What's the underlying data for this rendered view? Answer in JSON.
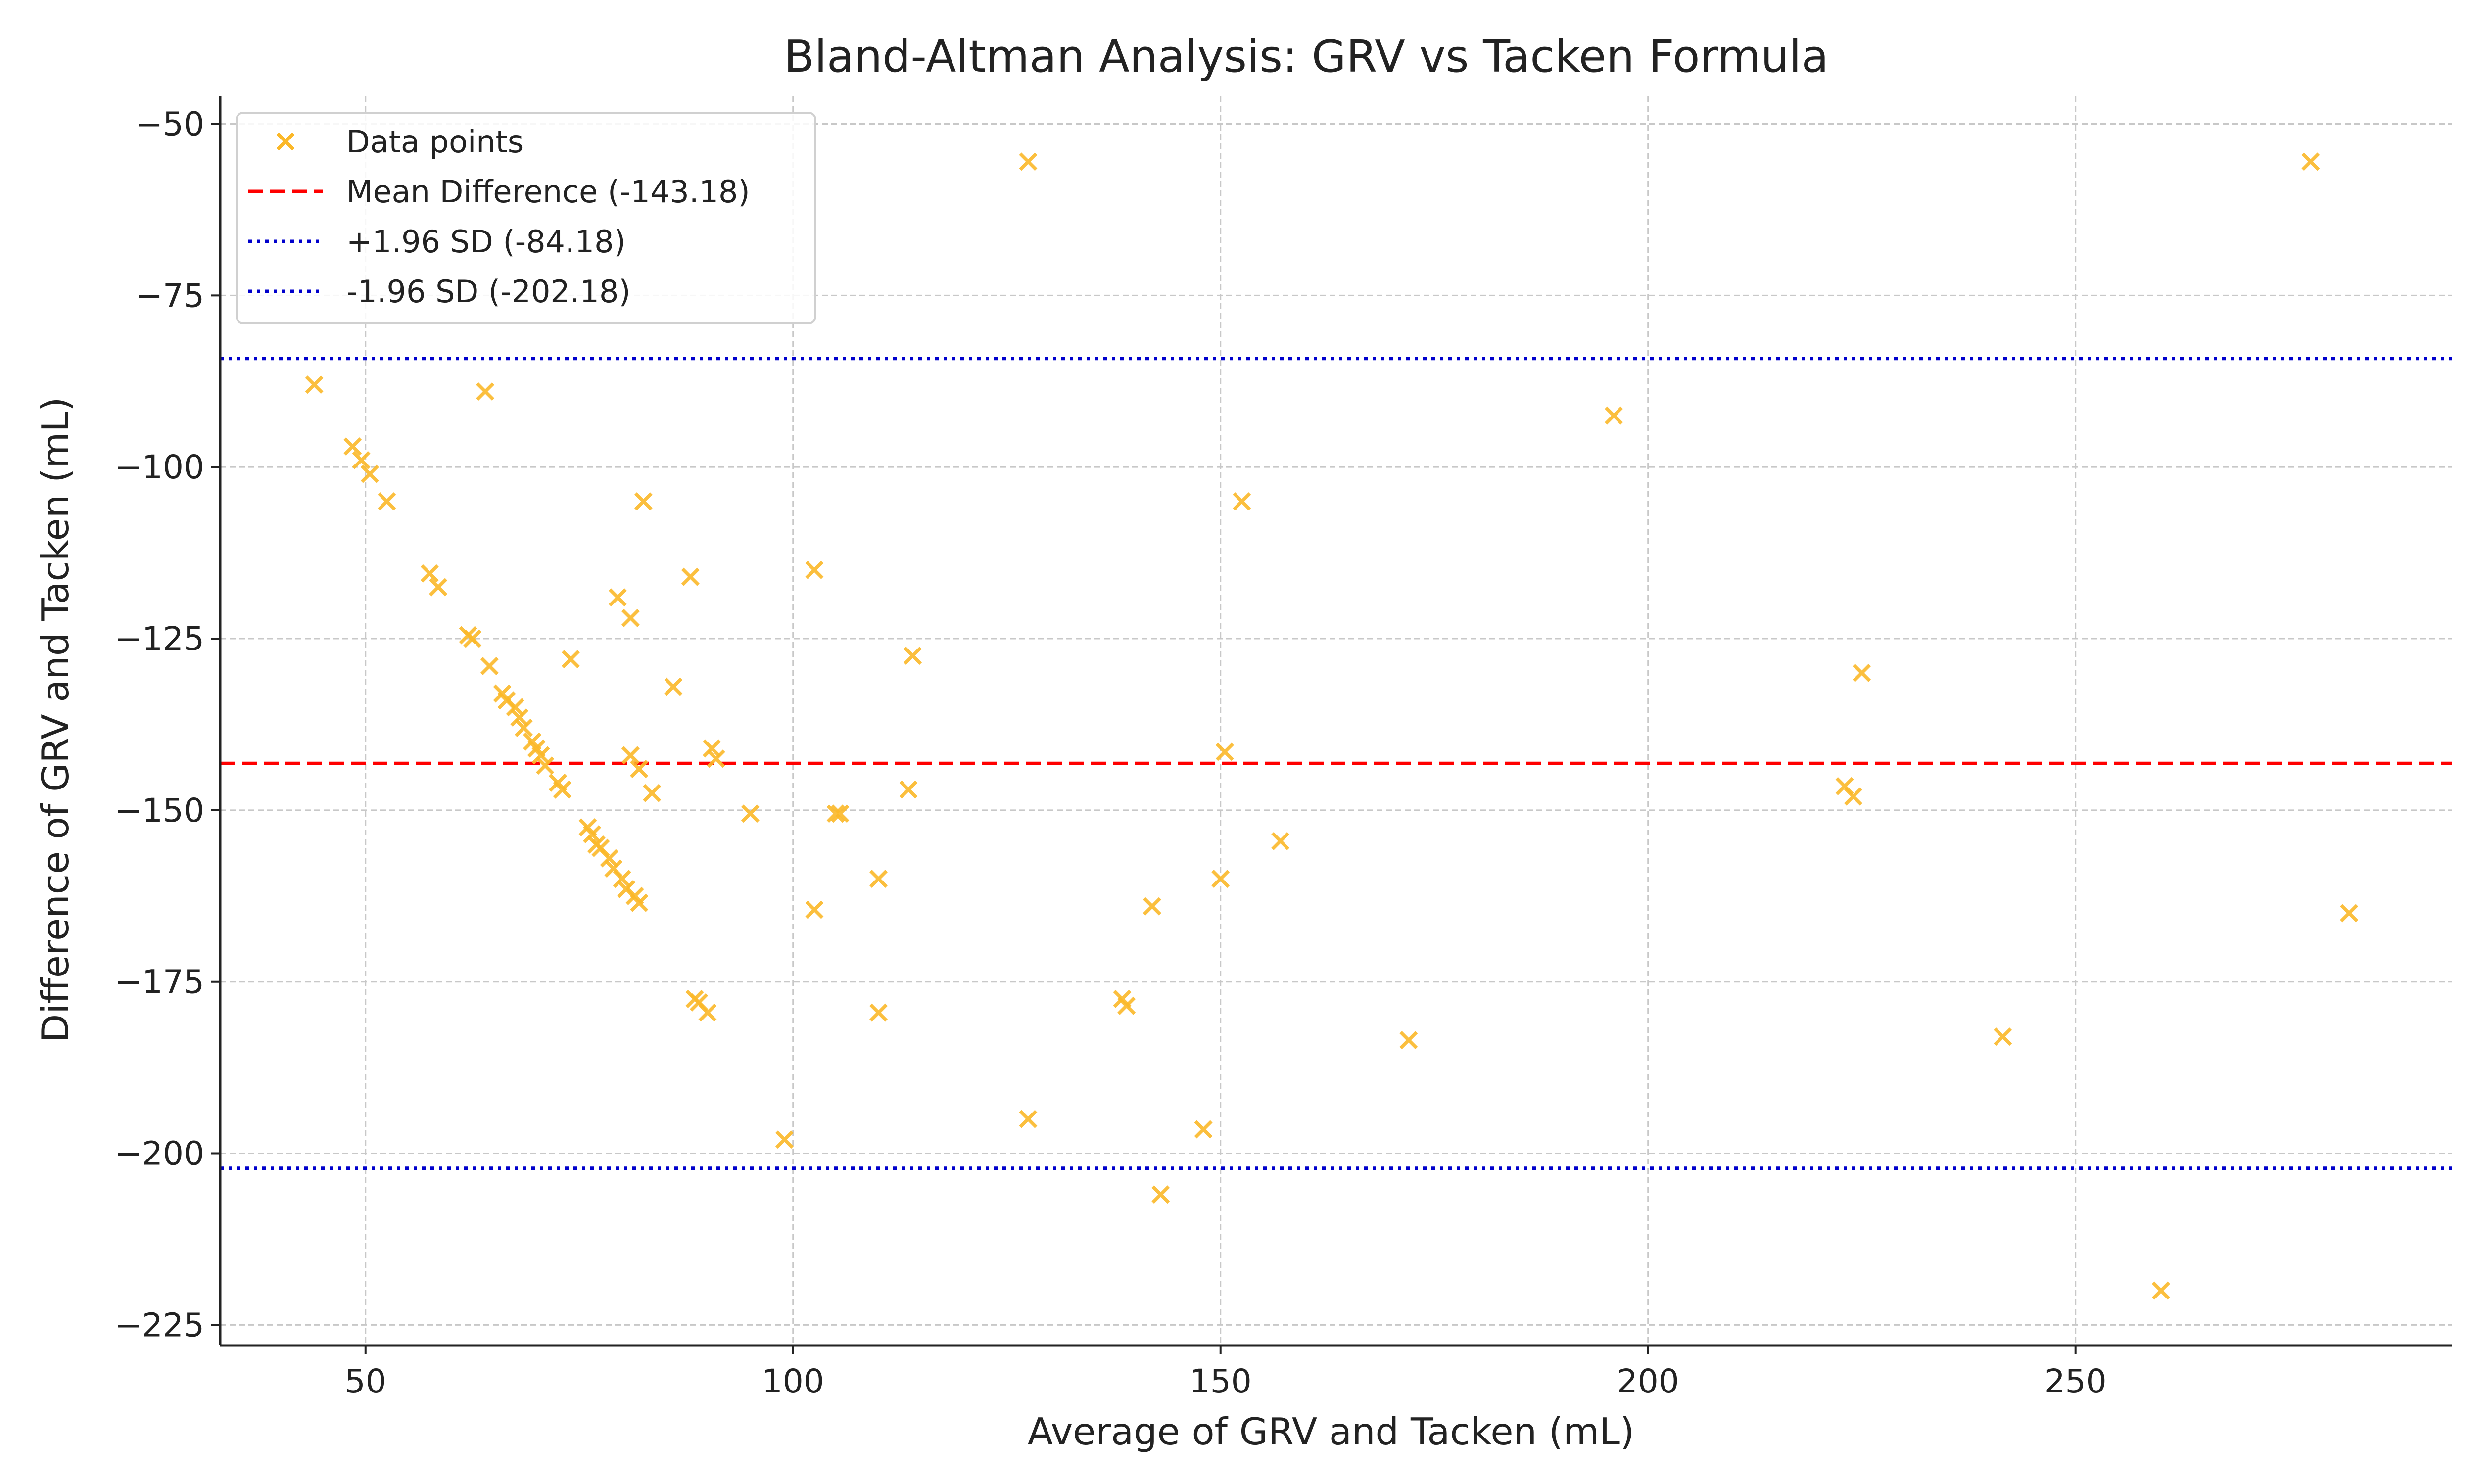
{
  "chart_data": {
    "type": "scatter",
    "title": "Bland-Altman Analysis: GRV vs Tacken Formula",
    "xlabel": "Average of GRV and Tacken (mL)",
    "ylabel": "Difference of GRV and Tacken (mL)",
    "xlim": [
      33,
      294
    ],
    "ylim": [
      -228,
      -46
    ],
    "xticks": [
      50,
      100,
      150,
      200,
      250
    ],
    "yticks": [
      -50,
      -75,
      -100,
      -125,
      -150,
      -175,
      -200,
      -225
    ],
    "xtick_labels": [
      "50",
      "100",
      "150",
      "200",
      "250"
    ],
    "ytick_labels": [
      "−50",
      "−75",
      "−100",
      "−125",
      "−150",
      "−175",
      "−200",
      "−225"
    ],
    "grid": true,
    "legend_position": "top-left",
    "series": [
      {
        "name": "Data points",
        "marker": "x",
        "color": "#FBB829",
        "points": [
          [
            44,
            -88
          ],
          [
            48.5,
            -97
          ],
          [
            49.5,
            -99
          ],
          [
            50.5,
            -101
          ],
          [
            52.5,
            -105
          ],
          [
            57.5,
            -115.5
          ],
          [
            58.5,
            -117.5
          ],
          [
            62,
            -124.5
          ],
          [
            62.5,
            -125
          ],
          [
            64.5,
            -129
          ],
          [
            64,
            -89
          ],
          [
            66,
            -133
          ],
          [
            66.5,
            -134
          ],
          [
            67.5,
            -135
          ],
          [
            68,
            -136.5
          ],
          [
            68.5,
            -138
          ],
          [
            69.5,
            -140
          ],
          [
            70,
            -141
          ],
          [
            70.5,
            -142
          ],
          [
            71,
            -143.5
          ],
          [
            72.5,
            -146
          ],
          [
            73,
            -147
          ],
          [
            74,
            -128
          ],
          [
            76,
            -152.5
          ],
          [
            76.5,
            -153.5
          ],
          [
            77,
            -155
          ],
          [
            77.5,
            -155.5
          ],
          [
            78.5,
            -157
          ],
          [
            79,
            -158.5
          ],
          [
            79.5,
            -119
          ],
          [
            80,
            -160
          ],
          [
            80.5,
            -161.5
          ],
          [
            81,
            -122
          ],
          [
            81,
            -142
          ],
          [
            81.5,
            -162.5
          ],
          [
            82,
            -163.5
          ],
          [
            82,
            -144
          ],
          [
            82.5,
            -105
          ],
          [
            83.5,
            -147.5
          ],
          [
            86,
            -132
          ],
          [
            88,
            -116
          ],
          [
            88.5,
            -177.5
          ],
          [
            89,
            -178
          ],
          [
            90,
            -179.5
          ],
          [
            90.5,
            -141
          ],
          [
            91,
            -142.5
          ],
          [
            95,
            -150.5
          ],
          [
            99,
            -198
          ],
          [
            102.5,
            -115
          ],
          [
            102.5,
            -164.5
          ],
          [
            105,
            -150.5
          ],
          [
            105.5,
            -150.5
          ],
          [
            110,
            -160
          ],
          [
            110,
            -179.5
          ],
          [
            113.5,
            -147
          ],
          [
            114,
            -127.5
          ],
          [
            127.5,
            -55.5
          ],
          [
            127.5,
            -195
          ],
          [
            138.5,
            -177.5
          ],
          [
            139,
            -178.5
          ],
          [
            142,
            -164
          ],
          [
            143,
            -206
          ],
          [
            148,
            -196.5
          ],
          [
            150,
            -160
          ],
          [
            150.5,
            -141.5
          ],
          [
            152.5,
            -105
          ],
          [
            157,
            -154.5
          ],
          [
            172,
            -183.5
          ],
          [
            196,
            -92.5
          ],
          [
            223,
            -146.5
          ],
          [
            224,
            -148
          ],
          [
            225,
            -130
          ],
          [
            241.5,
            -183
          ],
          [
            260,
            -220
          ],
          [
            277.5,
            -55.5
          ],
          [
            282,
            -165
          ]
        ]
      }
    ],
    "lines": [
      {
        "name": "Mean Difference (-143.18)",
        "y": -143.18,
        "color": "#FF0000",
        "style": "dashed"
      },
      {
        "name": "+1.96 SD (-84.18)",
        "y": -84.18,
        "color": "#0000CC",
        "style": "dotted"
      },
      {
        "name": "-1.96 SD (-202.18)",
        "y": -202.18,
        "color": "#0000CC",
        "style": "dotted"
      }
    ]
  }
}
